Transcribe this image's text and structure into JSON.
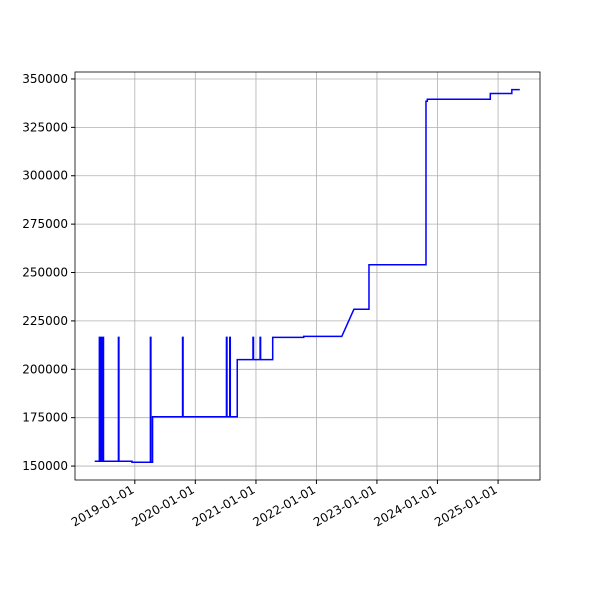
{
  "chart_data": {
    "type": "line",
    "color": "#0000ff",
    "grid": true,
    "x": [
      "2018-05-04",
      "2018-06-01",
      "2018-06-01",
      "2018-06-10",
      "2018-06-10",
      "2018-06-18",
      "2018-06-18",
      "2018-06-26",
      "2018-06-26",
      "2018-07-03",
      "2018-07-03",
      "2018-09-24",
      "2018-09-24",
      "2018-09-27",
      "2018-09-27",
      "2018-12-15",
      "2018-12-15",
      "2019-04-05",
      "2019-04-05",
      "2019-04-08",
      "2019-04-08",
      "2019-04-18",
      "2019-04-18",
      "2019-10-16",
      "2019-10-16",
      "2019-10-19",
      "2019-10-19",
      "2020-07-07",
      "2020-07-07",
      "2020-07-10",
      "2020-07-10",
      "2020-07-27",
      "2020-07-27",
      "2020-07-30",
      "2020-07-30",
      "2020-09-10",
      "2020-09-10",
      "2020-12-14",
      "2020-12-14",
      "2020-12-17",
      "2020-12-17",
      "2021-01-26",
      "2021-01-26",
      "2021-01-29",
      "2021-01-29",
      "2021-04-12",
      "2021-04-12",
      "2021-10-16",
      "2021-10-16",
      "2022-06-03",
      "2022-08-15",
      "2022-11-14",
      "2022-11-14",
      "2023-10-24",
      "2023-10-24",
      "2023-11-01",
      "2023-11-01",
      "2024-11-15",
      "2024-11-15",
      "2025-03-25",
      "2025-03-25",
      "2025-05-12"
    ],
    "values": [
      152500,
      152500,
      216500,
      216500,
      152500,
      152500,
      216500,
      216500,
      152500,
      152500,
      152500,
      152500,
      216500,
      216500,
      152500,
      152500,
      152000,
      152000,
      216500,
      216500,
      152000,
      152000,
      175500,
      175500,
      216500,
      216500,
      175500,
      175500,
      216500,
      216500,
      175500,
      175500,
      216500,
      216500,
      175500,
      175500,
      205000,
      205000,
      216500,
      216500,
      205000,
      205000,
      216500,
      216500,
      205000,
      205000,
      216500,
      216500,
      217000,
      217000,
      231000,
      231000,
      254000,
      254000,
      338500,
      338500,
      339500,
      339500,
      342500,
      342500,
      344500,
      344500
    ],
    "xlim": [
      "2018-01-05",
      "2025-09-11"
    ],
    "xticks": [
      "2019-01-01",
      "2020-01-01",
      "2021-01-01",
      "2022-01-01",
      "2023-01-01",
      "2024-01-01",
      "2025-01-01"
    ],
    "ylim": [
      142800,
      353600
    ],
    "yticks": [
      150000,
      175000,
      200000,
      225000,
      250000,
      275000,
      300000,
      325000,
      350000
    ]
  }
}
